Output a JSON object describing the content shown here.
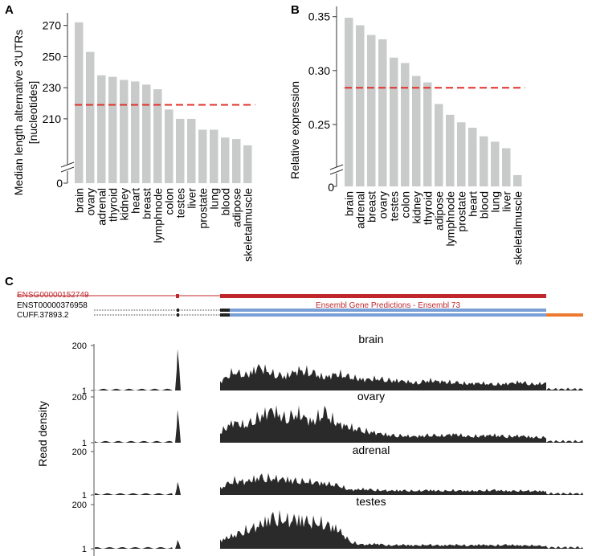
{
  "panels": {
    "a": "A",
    "b": "B",
    "c": "C"
  },
  "chart_data": [
    {
      "type": "bar",
      "panel": "A",
      "ylabel_line1": "Median length alternative 3'UTRs",
      "ylabel_line2": "[nucleotides]",
      "categories": [
        "brain",
        "ovary",
        "adrenal",
        "thyroid",
        "kidney",
        "heart",
        "breast",
        "lymphnode",
        "colon",
        "testes",
        "liver",
        "prostate",
        "lung",
        "blood",
        "adipose",
        "skeletalmuscle"
      ],
      "values": [
        272,
        253,
        238,
        237,
        235,
        234,
        232,
        229,
        216,
        210,
        210,
        203,
        203,
        198,
        197,
        193
      ],
      "ylim": [
        180,
        275
      ],
      "yticks": [
        210,
        230,
        250,
        270
      ],
      "ytick_labels": [
        "210",
        "230",
        "250",
        "270"
      ],
      "axis_break_label": "0",
      "reference_line": 219,
      "bar_color": "#c9cbcb",
      "reference_color": "#e0302a"
    },
    {
      "type": "bar",
      "panel": "B",
      "ylabel": "Relative expression",
      "categories": [
        "brain",
        "adrenal",
        "breast",
        "ovary",
        "testes",
        "colon",
        "kidney",
        "thyroid",
        "adipose",
        "lymphnode",
        "prostate",
        "heart",
        "blood",
        "lung",
        "liver",
        "skeletalmuscle"
      ],
      "values": [
        0.349,
        0.342,
        0.333,
        0.329,
        0.312,
        0.307,
        0.295,
        0.289,
        0.269,
        0.259,
        0.252,
        0.247,
        0.239,
        0.234,
        0.228,
        0.203
      ],
      "ylim": [
        0.2,
        0.355
      ],
      "yticks": [
        0.25,
        0.3,
        0.35
      ],
      "ytick_labels": [
        "0.25",
        "0.30",
        "0.35"
      ],
      "axis_break_label": "0",
      "reference_line": 0.284,
      "bar_color": "#c9cbcb",
      "reference_color": "#e0302a"
    },
    {
      "type": "area",
      "panel": "C",
      "ylabel": "Read density",
      "tracks": [
        {
          "name": "ENSG00000152749",
          "color": "#c0272d"
        },
        {
          "name": "ENST00000376958",
          "color": "#222222"
        },
        {
          "name": "CUFF.37893.2",
          "color": "#222222"
        }
      ],
      "annotation": "Ensembl Gene Predictions - Ensembl 73",
      "transcript_color": "#7a9fd6",
      "extension_color": "#ee7a30",
      "series_ytick_top": "200",
      "series_ytick_bottom": "1",
      "series": [
        {
          "name": "brain",
          "peak": 0.92,
          "cols": 26,
          "body": [
            0.25,
            0.55,
            0.45,
            0.7,
            0.5,
            0.42,
            0.6,
            0.55,
            0.38,
            0.5,
            0.4,
            0.32,
            0.35,
            0.3,
            0.28,
            0.22,
            0.3,
            0.26,
            0.24,
            0.2,
            0.22,
            0.18,
            0.2,
            0.25,
            0.18,
            0.22
          ]
        },
        {
          "name": "ovary",
          "peak": 0.72,
          "cols": 26,
          "body": [
            0.3,
            0.6,
            0.5,
            0.75,
            0.95,
            0.7,
            0.85,
            0.6,
            0.9,
            0.55,
            0.45,
            0.35,
            0.28,
            0.22,
            0.2,
            0.18,
            0.22,
            0.2,
            0.25,
            0.18,
            0.2,
            0.22,
            0.18,
            0.2,
            0.16,
            0.15
          ]
        },
        {
          "name": "adrenal",
          "peak": 0.3,
          "cols": 26,
          "body": [
            0.2,
            0.45,
            0.4,
            0.55,
            0.5,
            0.48,
            0.42,
            0.4,
            0.35,
            0.3,
            0.15,
            0.18,
            0.15,
            0.13,
            0.14,
            0.12,
            0.15,
            0.12,
            0.14,
            0.12,
            0.13,
            0.15,
            0.12,
            0.13,
            0.12,
            0.12
          ]
        },
        {
          "name": "testes",
          "peak": 0.2,
          "cols": 26,
          "body": [
            0.25,
            0.4,
            0.55,
            0.7,
            0.95,
            0.85,
            0.9,
            0.8,
            0.75,
            0.6,
            0.2,
            0.12,
            0.15,
            0.1,
            0.12,
            0.1,
            0.12,
            0.1,
            0.12,
            0.1,
            0.12,
            0.1,
            0.12,
            0.1,
            0.1,
            0.08
          ]
        }
      ]
    }
  ]
}
